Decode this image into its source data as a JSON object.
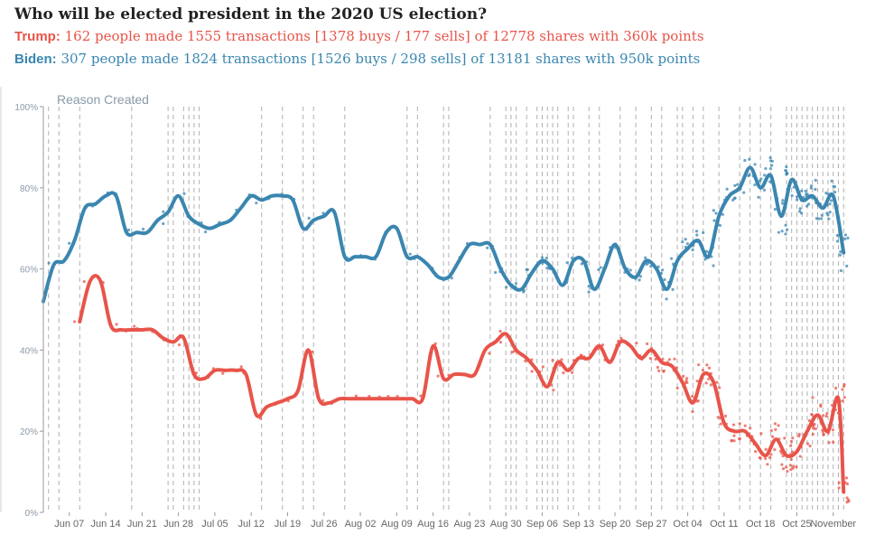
{
  "header": {
    "title": "Who will be elected president in the 2020 US election?",
    "trump_name": "Trump:",
    "trump_stats": "162 people made 1555 transactions [1378 buys / 177 sells] of 12778 shares with 360k points",
    "biden_name": "Biden:",
    "biden_stats": "307 people made 1824 transactions [1526 buys / 298 sells] of 13181 shares with 950k points"
  },
  "colors": {
    "trump": "#e8544a",
    "biden": "#3a86b0",
    "grid": "#b0b0b0"
  },
  "chart_data": {
    "type": "line",
    "annotation": "Reason Created",
    "x_start": "2020-06-02",
    "x_end": "2020-11-04",
    "ylim": [
      0,
      100
    ],
    "y_ticks": [
      "0%",
      "20%",
      "40%",
      "60%",
      "80%",
      "100%"
    ],
    "x_ticks": [
      {
        "label": "Jun 07",
        "date": "2020-06-07"
      },
      {
        "label": "Jun 14",
        "date": "2020-06-14"
      },
      {
        "label": "Jun 21",
        "date": "2020-06-21"
      },
      {
        "label": "Jun 28",
        "date": "2020-06-28"
      },
      {
        "label": "Jul 05",
        "date": "2020-07-05"
      },
      {
        "label": "Jul 12",
        "date": "2020-07-12"
      },
      {
        "label": "Jul 19",
        "date": "2020-07-19"
      },
      {
        "label": "Jul 26",
        "date": "2020-07-26"
      },
      {
        "label": "Aug 02",
        "date": "2020-08-02"
      },
      {
        "label": "Aug 09",
        "date": "2020-08-09"
      },
      {
        "label": "Aug 16",
        "date": "2020-08-16"
      },
      {
        "label": "Aug 23",
        "date": "2020-08-23"
      },
      {
        "label": "Aug 30",
        "date": "2020-08-30"
      },
      {
        "label": "Sep 06",
        "date": "2020-09-06"
      },
      {
        "label": "Sep 13",
        "date": "2020-09-13"
      },
      {
        "label": "Sep 20",
        "date": "2020-09-20"
      },
      {
        "label": "Sep 27",
        "date": "2020-09-27"
      },
      {
        "label": "Oct 04",
        "date": "2020-10-04"
      },
      {
        "label": "Oct 11",
        "date": "2020-10-11"
      },
      {
        "label": "Oct 18",
        "date": "2020-10-18"
      },
      {
        "label": "Oct 25",
        "date": "2020-10-25"
      },
      {
        "label": "November",
        "date": "2020-11-01"
      }
    ],
    "reason_dates": [
      "2020-06-03",
      "2020-06-05",
      "2020-06-09",
      "2020-06-19",
      "2020-06-26",
      "2020-06-27",
      "2020-06-29",
      "2020-06-30",
      "2020-07-01",
      "2020-07-02",
      "2020-07-14",
      "2020-07-18",
      "2020-07-22",
      "2020-07-24",
      "2020-07-30",
      "2020-08-11",
      "2020-08-13",
      "2020-08-18",
      "2020-08-19",
      "2020-08-27",
      "2020-08-30",
      "2020-08-31",
      "2020-09-01",
      "2020-09-03",
      "2020-09-05",
      "2020-09-06",
      "2020-09-07",
      "2020-09-08",
      "2020-09-09",
      "2020-09-11",
      "2020-09-12",
      "2020-09-15",
      "2020-09-17",
      "2020-09-21",
      "2020-09-24",
      "2020-09-27",
      "2020-09-29",
      "2020-10-02",
      "2020-10-03",
      "2020-10-05",
      "2020-10-07",
      "2020-10-10",
      "2020-10-14",
      "2020-10-16",
      "2020-10-18",
      "2020-10-20",
      "2020-10-23",
      "2020-10-24",
      "2020-10-25",
      "2020-10-26",
      "2020-10-27",
      "2020-10-28",
      "2020-10-29",
      "2020-10-30",
      "2020-10-31",
      "2020-11-01",
      "2020-11-02",
      "2020-11-03"
    ],
    "series": [
      {
        "name": "Biden",
        "x": [
          "2020-06-02",
          "2020-06-04",
          "2020-06-06",
          "2020-06-08",
          "2020-06-10",
          "2020-06-12",
          "2020-06-14",
          "2020-06-16",
          "2020-06-18",
          "2020-06-20",
          "2020-06-22",
          "2020-06-24",
          "2020-06-26",
          "2020-06-28",
          "2020-06-30",
          "2020-07-02",
          "2020-07-04",
          "2020-07-06",
          "2020-07-08",
          "2020-07-10",
          "2020-07-12",
          "2020-07-14",
          "2020-07-16",
          "2020-07-18",
          "2020-07-20",
          "2020-07-22",
          "2020-07-24",
          "2020-07-26",
          "2020-07-28",
          "2020-07-30",
          "2020-08-01",
          "2020-08-03",
          "2020-08-05",
          "2020-08-07",
          "2020-08-09",
          "2020-08-11",
          "2020-08-13",
          "2020-08-15",
          "2020-08-17",
          "2020-08-19",
          "2020-08-21",
          "2020-08-23",
          "2020-08-25",
          "2020-08-27",
          "2020-08-29",
          "2020-08-31",
          "2020-09-02",
          "2020-09-04",
          "2020-09-06",
          "2020-09-08",
          "2020-09-10",
          "2020-09-12",
          "2020-09-14",
          "2020-09-16",
          "2020-09-18",
          "2020-09-20",
          "2020-09-22",
          "2020-09-24",
          "2020-09-26",
          "2020-09-28",
          "2020-09-30",
          "2020-10-02",
          "2020-10-04",
          "2020-10-06",
          "2020-10-08",
          "2020-10-10",
          "2020-10-12",
          "2020-10-14",
          "2020-10-16",
          "2020-10-18",
          "2020-10-20",
          "2020-10-22",
          "2020-10-24",
          "2020-10-26",
          "2020-10-28",
          "2020-10-30",
          "2020-11-01",
          "2020-11-03"
        ],
        "values": [
          52,
          61,
          62,
          67,
          75,
          76,
          78,
          78,
          69,
          69,
          69,
          72,
          74,
          78,
          73,
          71,
          70,
          71,
          72,
          75,
          78,
          77,
          78,
          78,
          77,
          70,
          72,
          73,
          74,
          63,
          63,
          63,
          63,
          69,
          70,
          63,
          63,
          61,
          58,
          58,
          62,
          66,
          66,
          66,
          60,
          56,
          55,
          59,
          62,
          60,
          56,
          62,
          62,
          55,
          60,
          66,
          60,
          58,
          62,
          60,
          55,
          62,
          65,
          67,
          63,
          73,
          78,
          80,
          85,
          80,
          83,
          73,
          82,
          77,
          78,
          75,
          78,
          64
        ]
      },
      {
        "name": "Trump",
        "x": [
          "2020-06-09",
          "2020-06-11",
          "2020-06-13",
          "2020-06-15",
          "2020-06-17",
          "2020-06-19",
          "2020-06-21",
          "2020-06-23",
          "2020-06-25",
          "2020-06-27",
          "2020-06-29",
          "2020-07-01",
          "2020-07-03",
          "2020-07-05",
          "2020-07-07",
          "2020-07-09",
          "2020-07-11",
          "2020-07-13",
          "2020-07-15",
          "2020-07-17",
          "2020-07-19",
          "2020-07-21",
          "2020-07-23",
          "2020-07-25",
          "2020-07-27",
          "2020-07-29",
          "2020-07-31",
          "2020-08-02",
          "2020-08-04",
          "2020-08-06",
          "2020-08-08",
          "2020-08-10",
          "2020-08-12",
          "2020-08-14",
          "2020-08-16",
          "2020-08-18",
          "2020-08-20",
          "2020-08-22",
          "2020-08-24",
          "2020-08-26",
          "2020-08-28",
          "2020-08-30",
          "2020-09-01",
          "2020-09-03",
          "2020-09-05",
          "2020-09-07",
          "2020-09-09",
          "2020-09-11",
          "2020-09-13",
          "2020-09-15",
          "2020-09-17",
          "2020-09-19",
          "2020-09-21",
          "2020-09-23",
          "2020-09-25",
          "2020-09-27",
          "2020-09-29",
          "2020-10-01",
          "2020-10-03",
          "2020-10-05",
          "2020-10-07",
          "2020-10-09",
          "2020-10-11",
          "2020-10-13",
          "2020-10-15",
          "2020-10-17",
          "2020-10-19",
          "2020-10-21",
          "2020-10-23",
          "2020-10-25",
          "2020-10-27",
          "2020-10-29",
          "2020-10-31",
          "2020-11-02",
          "2020-11-03"
        ],
        "values": [
          47,
          57,
          57,
          46,
          45,
          45,
          45,
          45,
          43,
          42,
          43,
          34,
          33,
          35,
          35,
          35,
          34,
          24,
          26,
          27,
          28,
          30,
          40,
          28,
          27,
          28,
          28,
          28,
          28,
          28,
          28,
          28,
          28,
          28,
          41,
          33,
          34,
          34,
          34,
          40,
          42,
          44,
          40,
          38,
          35,
          31,
          37,
          35,
          38,
          38,
          41,
          37,
          42,
          41,
          38,
          40,
          37,
          36,
          32,
          27,
          34,
          32,
          22,
          20,
          20,
          17,
          14,
          18,
          14,
          15,
          20,
          24,
          20,
          28,
          5
        ]
      }
    ]
  }
}
